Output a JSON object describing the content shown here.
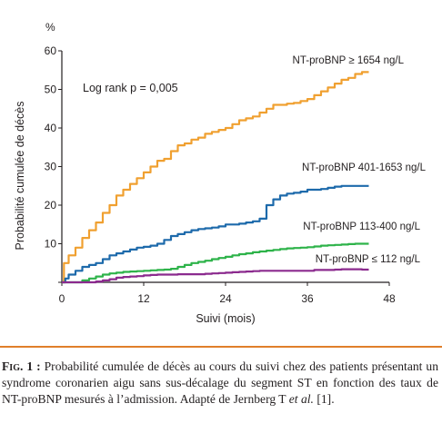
{
  "caption": {
    "figure_label": "Fig. 1 :",
    "text": " Probabilité cumulée de décès au cours du suivi chez des patients présentant un syndrome coronarien aigu sans sus-décalage du segment ST en fonction des taux de NT-proBNP mesurés à l’admission. Adapté de Jernberg T ",
    "et_al": "et al.",
    "ref": " [1]."
  },
  "colors": {
    "series_orange": "#f0a030",
    "series_blue": "#1d6aab",
    "series_green": "#2eb34a",
    "series_purple": "#8b2a8e",
    "rule": "#e07f2a"
  },
  "chart_data": {
    "type": "line",
    "title": "",
    "xlabel": "Suivi (mois)",
    "ylabel": "Probabilité cumulée de décès",
    "yunit": "%",
    "xlim": [
      0,
      48
    ],
    "ylim": [
      0,
      60
    ],
    "xticks": [
      "0",
      "12",
      "24",
      "36",
      "48"
    ],
    "yticks": [
      "0",
      "10",
      "20",
      "30",
      "40",
      "50",
      "60"
    ],
    "grid": false,
    "annotation": "Log rank p = 0,005",
    "series": [
      {
        "name": "NT-proBNP ≥ 1654 ng/L",
        "color": "#f0a030",
        "x": [
          0,
          0.3,
          1,
          2,
          3,
          4,
          5,
          6,
          7,
          8,
          9,
          10,
          11,
          12,
          13,
          14,
          15,
          16,
          17,
          18,
          19,
          20,
          21,
          22,
          23,
          24,
          25,
          26,
          27,
          28,
          29,
          30,
          31,
          32,
          33,
          34,
          35,
          36,
          37,
          38,
          39,
          40,
          41,
          42,
          43,
          44,
          45
        ],
        "y": [
          0,
          5,
          7,
          9,
          11.5,
          13.5,
          15.5,
          18,
          20,
          22.5,
          24,
          25.5,
          27,
          28.5,
          30,
          31.5,
          32,
          34,
          35.5,
          36,
          37,
          37.5,
          38.5,
          39,
          39.5,
          40,
          41,
          42,
          42.5,
          43,
          44,
          45,
          46,
          46,
          46.3,
          46.5,
          47,
          47.5,
          48.5,
          49.5,
          50.5,
          51.5,
          52.5,
          53,
          54,
          54.5,
          54.5
        ]
      },
      {
        "name": "NT-proBNP 401-1653 ng/L",
        "color": "#1d6aab",
        "x": [
          0,
          0.5,
          1,
          2,
          3,
          4,
          5,
          6,
          7,
          8,
          9,
          10,
          11,
          12,
          13,
          14,
          15,
          16,
          17,
          18,
          19,
          20,
          21,
          22,
          23,
          24,
          25,
          26,
          27,
          28,
          29,
          30,
          31,
          32,
          33,
          34,
          35,
          36,
          37,
          38,
          39,
          40,
          41,
          42,
          43,
          44,
          45
        ],
        "y": [
          0,
          1,
          2,
          3,
          4,
          4.5,
          5,
          6,
          7,
          7.5,
          8,
          8.5,
          9,
          9.2,
          9.5,
          10,
          11,
          12,
          12.5,
          13,
          13.5,
          13.8,
          14,
          14.2,
          14.5,
          15,
          15,
          15.2,
          15.5,
          15.8,
          16.5,
          20,
          21.5,
          22.5,
          23,
          23.2,
          23.5,
          24,
          24,
          24.2,
          24.5,
          24.8,
          25,
          25,
          25,
          25,
          25
        ]
      },
      {
        "name": "NT-proBNP 113-400 ng/L",
        "color": "#2eb34a",
        "x": [
          0,
          2,
          3,
          4,
          5,
          6,
          7,
          8,
          9,
          10,
          11,
          12,
          13,
          14,
          15,
          16,
          17,
          18,
          19,
          20,
          21,
          22,
          23,
          24,
          25,
          26,
          27,
          28,
          29,
          30,
          31,
          32,
          33,
          34,
          35,
          36,
          37,
          38,
          39,
          40,
          41,
          42,
          43,
          44,
          45
        ],
        "y": [
          0,
          0,
          0.5,
          1,
          1.5,
          2,
          2.3,
          2.5,
          2.7,
          2.8,
          2.9,
          3,
          3.1,
          3.2,
          3.3,
          3.5,
          4,
          4.5,
          5,
          5.3,
          5.6,
          6,
          6.3,
          6.6,
          7,
          7.3,
          7.5,
          7.8,
          8,
          8.2,
          8.4,
          8.6,
          8.8,
          8.9,
          9,
          9.1,
          9.3,
          9.5,
          9.6,
          9.7,
          9.8,
          9.9,
          10,
          10,
          10
        ]
      },
      {
        "name": "NT-proBNP ≤ 112 ng/L",
        "color": "#8b2a8e",
        "x": [
          0,
          4,
          5,
          6,
          7,
          8,
          9,
          10,
          11,
          12,
          13,
          14,
          15,
          16,
          17,
          18,
          19,
          20,
          21,
          22,
          23,
          24,
          25,
          26,
          27,
          28,
          29,
          30,
          31,
          32,
          33,
          34,
          35,
          36,
          37,
          38,
          39,
          40,
          41,
          42,
          43,
          44,
          45
        ],
        "y": [
          0,
          0,
          0.2,
          0.5,
          0.8,
          1.2,
          1.4,
          1.5,
          1.6,
          1.8,
          1.9,
          2,
          2,
          2,
          2.1,
          2.1,
          2.1,
          2.1,
          2.2,
          2.3,
          2.4,
          2.5,
          2.6,
          2.7,
          2.8,
          2.9,
          3,
          3,
          3,
          3,
          3,
          3,
          3,
          3,
          3.2,
          3.2,
          3.2,
          3.3,
          3.4,
          3.4,
          3.4,
          3.3,
          3.3
        ]
      }
    ]
  }
}
